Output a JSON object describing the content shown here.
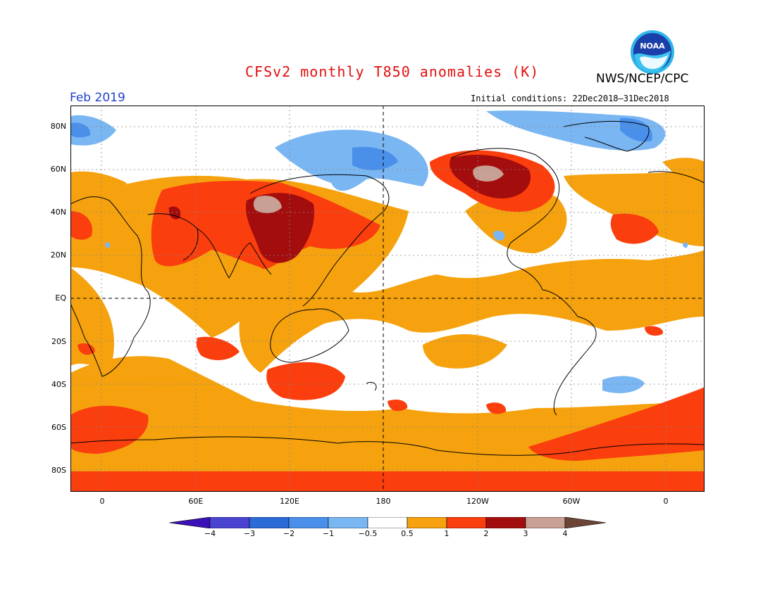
{
  "header": {
    "title": "CFSv2 monthly T850 anomalies (K)",
    "agency": "NWS/NCEP/CPC",
    "period": "Feb 2019",
    "initial_conditions": "Initial conditions: 22Dec2018–31Dec2018",
    "logo_text": "NOAA"
  },
  "axes": {
    "y_ticks": [
      "80N",
      "60N",
      "40N",
      "20N",
      "EQ",
      "20S",
      "40S",
      "60S",
      "80S"
    ],
    "x_ticks": [
      "0",
      "60E",
      "120E",
      "180",
      "120W",
      "60W",
      "0"
    ]
  },
  "legend": {
    "labels": [
      "−4",
      "−3",
      "−2",
      "−1",
      "−0.5",
      "0.5",
      "1",
      "2",
      "3",
      "4"
    ],
    "colors": [
      "#3c10b8",
      "#4a44d0",
      "#2c6ad8",
      "#4a90ea",
      "#7ab6f2",
      "#ffffff",
      "#f5a20e",
      "#fa3e0e",
      "#a30d0d",
      "#c9a094",
      "#6b4436"
    ]
  },
  "colors": {
    "title": "#e01010",
    "period": "#2040d0",
    "ocean_land_base": "#ffffff",
    "warm_1": "#f5a20e",
    "warm_2": "#fa3e0e",
    "warm_3": "#a30d0d",
    "warm_4": "#c9a094",
    "cool_1": "#7ab6f2",
    "cool_2": "#4a90ea"
  }
}
